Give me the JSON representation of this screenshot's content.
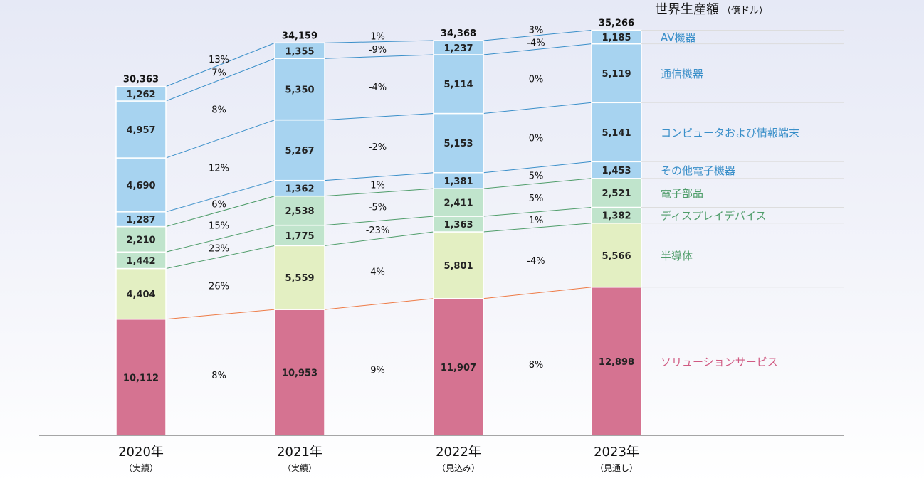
{
  "title": {
    "main": "世界生産額",
    "unit": "（億ドル）"
  },
  "colors": {
    "electronics": "#a7d3f0",
    "components": "#c0e4cc",
    "semiconductor": "#e3efc2",
    "solutions": "#d57391",
    "legend_electronics": "#3a8fc9",
    "legend_components": "#4f9d6a",
    "legend_solutions": "#d05a82",
    "connector_blue": "#3a8fc9",
    "connector_green": "#4f9d6a",
    "connector_orange": "#ee7b46"
  },
  "chart_data": {
    "type": "bar",
    "stacked": true,
    "categories": [
      "2020年",
      "2021年",
      "2022年",
      "2023年"
    ],
    "category_notes": [
      "（実績）",
      "（実績）",
      "（見込み）",
      "（見通し）"
    ],
    "totals": [
      "30,363",
      "34,159",
      "34,368",
      "35,266"
    ],
    "series": [
      {
        "name": "ソリューションサービス",
        "group": "solutions",
        "values": [
          10112,
          10953,
          11907,
          12898
        ],
        "labels": [
          "10,112",
          "10,953",
          "11,907",
          "12,898"
        ]
      },
      {
        "name": "半導体",
        "group": "semiconductor",
        "values": [
          4404,
          5559,
          5801,
          5566
        ],
        "labels": [
          "4,404",
          "5,559",
          "5,801",
          "5,566"
        ]
      },
      {
        "name": "ディスプレイデバイス",
        "group": "components",
        "values": [
          1442,
          1775,
          1363,
          1382
        ],
        "labels": [
          "1,442",
          "1,775",
          "1,363",
          "1,382"
        ]
      },
      {
        "name": "電子部品",
        "group": "components",
        "values": [
          2210,
          2538,
          2411,
          2521
        ],
        "labels": [
          "2,210",
          "2,538",
          "2,411",
          "2,521"
        ]
      },
      {
        "name": "その他電子機器",
        "group": "electronics",
        "values": [
          1287,
          1362,
          1381,
          1453
        ],
        "labels": [
          "1,287",
          "1,362",
          "1,381",
          "1,453"
        ]
      },
      {
        "name": "コンピュータおよび情報端末",
        "group": "electronics",
        "values": [
          4690,
          5267,
          5153,
          5141
        ],
        "labels": [
          "4,690",
          "5,267",
          "5,153",
          "5,141"
        ]
      },
      {
        "name": "通信機器",
        "group": "electronics",
        "values": [
          4957,
          5350,
          5114,
          5119
        ],
        "labels": [
          "4,957",
          "5,350",
          "5,114",
          "5,119"
        ]
      },
      {
        "name": "AV機器",
        "group": "electronics",
        "values": [
          1262,
          1355,
          1237,
          1185
        ],
        "labels": [
          "1,262",
          "1,355",
          "1,237",
          "1,185"
        ]
      }
    ],
    "growth": {
      "2020-2021": [
        "8%",
        "26%",
        "23%",
        "15%",
        "6%",
        "12%",
        "8%",
        "7%",
        "13%"
      ],
      "2021-2022": [
        "9%",
        "4%",
        "-23%",
        "-5%",
        "1%",
        "-2%",
        "-4%",
        "-9%",
        "1%"
      ],
      "2022-2023": [
        "8%",
        "-4%",
        "1%",
        "5%",
        "5%",
        "0%",
        "0%",
        "-4%",
        "3%"
      ]
    },
    "ylim": [
      0,
      37000
    ],
    "legend_position": "right"
  }
}
